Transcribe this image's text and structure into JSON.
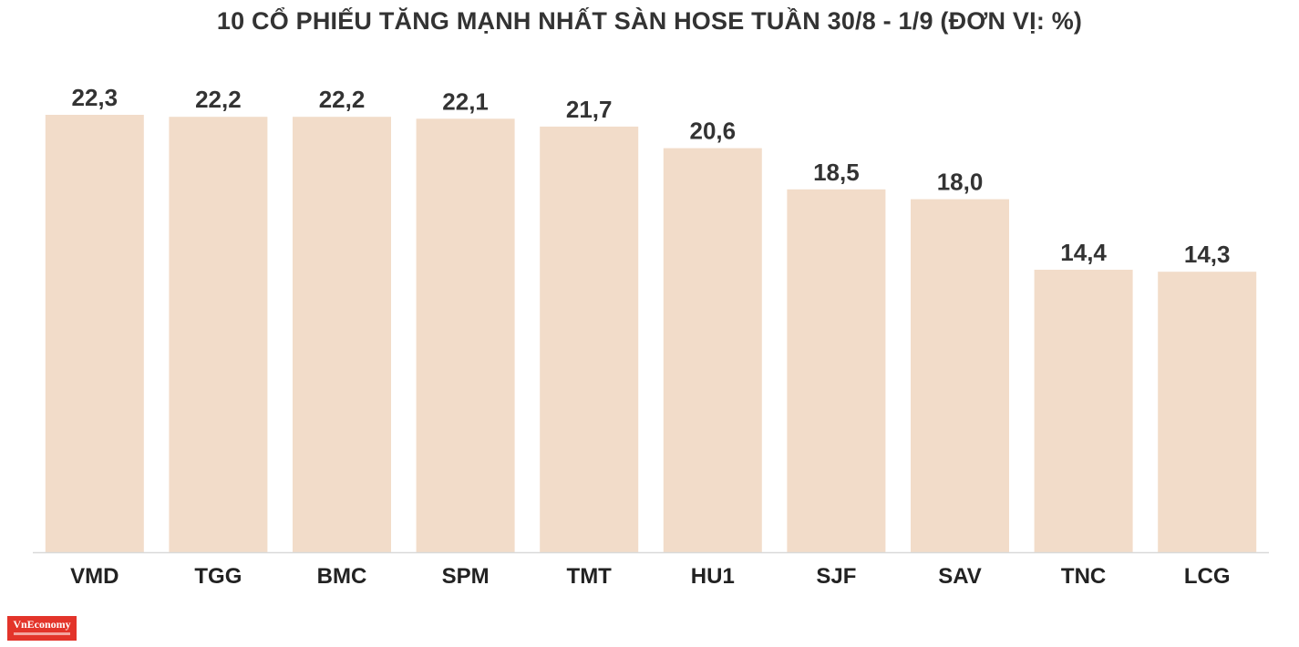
{
  "chart_data": {
    "type": "bar",
    "title": "10 CỔ PHIẾU TĂNG MẠNH NHẤT SÀN HOSE TUẦN 30/8 - 1/9 (ĐƠN VỊ: %)",
    "categories": [
      "VMD",
      "TGG",
      "BMC",
      "SPM",
      "TMT",
      "HU1",
      "SJF",
      "SAV",
      "TNC",
      "LCG"
    ],
    "values": [
      22.3,
      22.2,
      22.2,
      22.1,
      21.7,
      20.6,
      18.5,
      18.0,
      14.4,
      14.3
    ],
    "value_labels": [
      "22,3",
      "22,2",
      "22,2",
      "22,1",
      "21,7",
      "20,6",
      "18,5",
      "18,0",
      "14,4",
      "14,3"
    ],
    "ylim": [
      0,
      22.3
    ],
    "grid": false,
    "legend": "none",
    "bar_color": "#f2dcc9",
    "baseline_color": "#d9d9d9"
  },
  "logo": {
    "text": "VnEconomy"
  }
}
